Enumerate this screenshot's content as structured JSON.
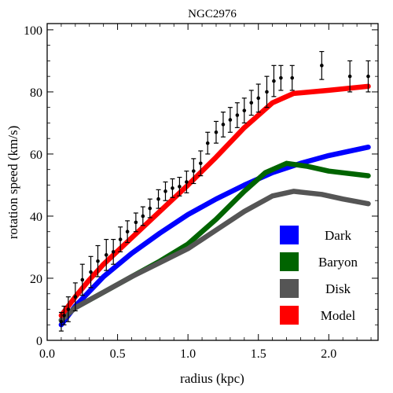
{
  "chart_data": {
    "type": "line",
    "title": "NGC2976",
    "xlabel": "radius (kpc)",
    "ylabel": "rotation speed (km/s)",
    "xlim": [
      0,
      2.35
    ],
    "ylim": [
      0,
      102
    ],
    "xticks": [
      {
        "value": 0.0,
        "label": "0.0"
      },
      {
        "value": 0.5,
        "label": "0.5"
      },
      {
        "value": 1.0,
        "label": "1.0"
      },
      {
        "value": 1.5,
        "label": "1.5"
      },
      {
        "value": 2.0,
        "label": "2.0"
      }
    ],
    "yticks": [
      {
        "value": 0,
        "label": "0"
      },
      {
        "value": 20,
        "label": "20"
      },
      {
        "value": 40,
        "label": "40"
      },
      {
        "value": 60,
        "label": "60"
      },
      {
        "value": 80,
        "label": "80"
      },
      {
        "value": 100,
        "label": "100"
      }
    ],
    "grid": false,
    "legend_position": "bottom-right",
    "series": [
      {
        "name": "Dark",
        "color": "#0000ff",
        "x": [
          0.1,
          0.2,
          0.4,
          0.6,
          0.8,
          1.0,
          1.2,
          1.4,
          1.6,
          1.8,
          2.0,
          2.28
        ],
        "y": [
          5,
          11,
          20.5,
          28,
          34.5,
          40.5,
          45.5,
          50,
          54,
          57,
          59.5,
          62.2
        ]
      },
      {
        "name": "Baryon",
        "color": "#006400",
        "x": [
          0.1,
          0.2,
          0.4,
          0.6,
          0.8,
          1.0,
          1.2,
          1.4,
          1.55,
          1.7,
          1.85,
          2.0,
          2.28
        ],
        "y": [
          6.5,
          10.5,
          15.5,
          20.5,
          25.5,
          31,
          39,
          48,
          54,
          57,
          56,
          54.5,
          53
        ]
      },
      {
        "name": "Disk",
        "color": "#555555",
        "x": [
          0.1,
          0.2,
          0.4,
          0.6,
          0.8,
          1.0,
          1.2,
          1.4,
          1.6,
          1.75,
          1.95,
          2.1,
          2.28
        ],
        "y": [
          6.5,
          10.5,
          15.5,
          20.5,
          25,
          29.5,
          35.5,
          41.5,
          46.5,
          48,
          47,
          45.5,
          44
        ]
      },
      {
        "name": "Model",
        "color": "#ff0000",
        "x": [
          0.1,
          0.2,
          0.3,
          0.4,
          0.6,
          0.8,
          1.0,
          1.2,
          1.4,
          1.6,
          1.75,
          2.0,
          2.28
        ],
        "y": [
          8,
          14,
          19.5,
          24.5,
          33,
          41.5,
          50,
          59,
          68.5,
          76.5,
          79.5,
          80.5,
          81.8
        ]
      }
    ],
    "observations": {
      "x": [
        0.1,
        0.12,
        0.15,
        0.2,
        0.25,
        0.31,
        0.36,
        0.42,
        0.47,
        0.52,
        0.57,
        0.63,
        0.68,
        0.73,
        0.79,
        0.84,
        0.89,
        0.94,
        0.99,
        1.04,
        1.09,
        1.14,
        1.2,
        1.25,
        1.3,
        1.35,
        1.4,
        1.45,
        1.5,
        1.56,
        1.61,
        1.66,
        1.74,
        1.95,
        2.15,
        2.28
      ],
      "y": [
        6,
        8,
        10,
        14,
        19.5,
        22,
        25.5,
        27.5,
        28.5,
        32.5,
        35,
        38,
        40,
        42.5,
        45.5,
        48,
        49,
        49.5,
        51,
        54.5,
        57,
        63.5,
        67,
        69.5,
        71,
        72.5,
        74,
        76.5,
        78,
        80,
        83.5,
        84.5,
        84.5,
        88.5,
        85,
        85
      ],
      "err": [
        3,
        3,
        4,
        4.5,
        5,
        5,
        5,
        5,
        4,
        4,
        3.5,
        3,
        3,
        3,
        3,
        3,
        3,
        3,
        3.5,
        4,
        4,
        3.5,
        3.5,
        4,
        4,
        4,
        4,
        4,
        4.5,
        5,
        5,
        4,
        4,
        4.5,
        5,
        5
      ]
    }
  }
}
